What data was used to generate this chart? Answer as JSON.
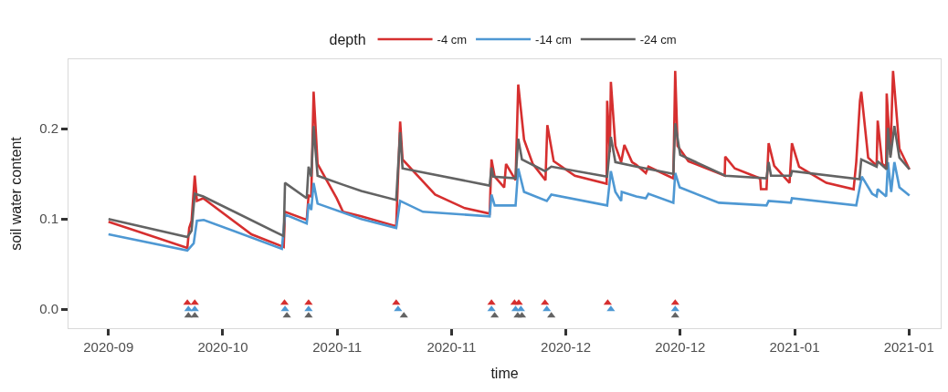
{
  "chart_data": {
    "type": "line",
    "xlabel": "time",
    "ylabel": "soil water content",
    "legend_title": "depth",
    "legend": "top",
    "grid": false,
    "line_style": "solid",
    "xlim": [
      "2020-09-20T17:00",
      "2021-02-05T00:00"
    ],
    "xticks": [
      {
        "value": "2020-09-27",
        "label": "2020-09"
      },
      {
        "value": "2020-10-15",
        "label": "2020-10"
      },
      {
        "value": "2020-11-02",
        "label": "2020-11"
      },
      {
        "value": "2020-11-20",
        "label": "2020-11"
      },
      {
        "value": "2020-12-08",
        "label": "2020-12"
      },
      {
        "value": "2020-12-26",
        "label": "2020-12"
      },
      {
        "value": "2021-01-13",
        "label": "2021-01"
      },
      {
        "value": "2021-01-31",
        "label": "2021-01"
      }
    ],
    "ylim": [
      -0.021,
      0.277
    ],
    "yticks": [
      {
        "value": 0,
        "label": "0.0"
      },
      {
        "value": 0.1,
        "label": "0.1"
      },
      {
        "value": 0.2,
        "label": "0.2"
      }
    ],
    "series": [
      {
        "name": "-4 cm",
        "color": "#d62f2f",
        "x": [
          "2020-09-27T00:00",
          "2020-10-09T10:00",
          "2020-10-09T17:00",
          "2020-10-10T02:00",
          "2020-10-10T14:00",
          "2020-10-10T22:00",
          "2020-10-11T22:00",
          "2020-10-19T12:00",
          "2020-10-24T14:00",
          "2020-10-24T19:00",
          "2020-10-28T05:00",
          "2020-10-28T12:00",
          "2020-10-28T22:00",
          "2020-10-29T07:00",
          "2020-10-29T22:00",
          "2020-11-01T22:00",
          "2020-11-02T22:00",
          "2020-11-05T19:00",
          "2020-11-11T07:00",
          "2020-11-11T22:00",
          "2020-11-12T07:00",
          "2020-11-17T10:00",
          "2020-11-22T02:00",
          "2020-11-26T00:00",
          "2020-11-26T07:00",
          "2020-11-26T19:00",
          "2020-11-28T07:00",
          "2020-11-28T14:00",
          "2020-11-30T02:00",
          "2020-11-30T12:00",
          "2020-12-01T10:00",
          "2020-12-02T19:00",
          "2020-12-04T19:00",
          "2020-12-05T02:00",
          "2020-12-06T02:00",
          "2020-12-09T10:00",
          "2020-12-14T10:00",
          "2020-12-14T12:00",
          "2020-12-14T22:00",
          "2020-12-15T02:00",
          "2020-12-15T19:00",
          "2020-12-16T17:00",
          "2020-12-17T05:00",
          "2020-12-18T10:00",
          "2020-12-19T02:00",
          "2020-12-20T14:00",
          "2020-12-21T00:00",
          "2020-12-24T22:00",
          "2020-12-25T05:00",
          "2020-12-25T14:00",
          "2020-12-27T07:00",
          "2021-01-02T00:00",
          "2021-01-02T02:00",
          "2021-01-03T14:00",
          "2021-01-07T14:00",
          "2021-01-07T17:00",
          "2021-01-08T14:00",
          "2021-01-08T22:00",
          "2021-01-09T19:00",
          "2021-01-12T05:00",
          "2021-01-12T14:00",
          "2021-01-13T17:00",
          "2021-01-18T00:00",
          "2021-01-22T07:00",
          "2021-01-22T17:00",
          "2021-01-23T07:00",
          "2021-01-23T12:00",
          "2021-01-24T14:00",
          "2021-01-25T22:00",
          "2021-01-26T02:00",
          "2021-01-26T19:00",
          "2021-01-27T10:00",
          "2021-01-27T12:00",
          "2021-01-28T02:00",
          "2021-01-28T12:00",
          "2021-01-29T12:00",
          "2021-01-31T02:00"
        ],
        "values": [
          0.097,
          0.068,
          0.09,
          0.098,
          0.148,
          0.12,
          0.123,
          0.083,
          0.069,
          0.108,
          0.099,
          0.126,
          0.125,
          0.241,
          0.161,
          0.123,
          0.108,
          0.103,
          0.092,
          0.208,
          0.166,
          0.127,
          0.112,
          0.106,
          0.166,
          0.147,
          0.135,
          0.161,
          0.143,
          0.249,
          0.188,
          0.161,
          0.143,
          0.204,
          0.164,
          0.148,
          0.139,
          0.231,
          0.174,
          0.252,
          0.181,
          0.163,
          0.182,
          0.163,
          0.16,
          0.151,
          0.158,
          0.145,
          0.264,
          0.181,
          0.164,
          0.148,
          0.169,
          0.156,
          0.145,
          0.133,
          0.133,
          0.184,
          0.159,
          0.14,
          0.184,
          0.158,
          0.14,
          0.133,
          0.163,
          0.231,
          0.241,
          0.168,
          0.159,
          0.209,
          0.161,
          0.158,
          0.239,
          0.171,
          0.264,
          0.178,
          0.155
        ]
      },
      {
        "name": "-14 cm",
        "color": "#4e98d3",
        "x": [
          "2020-09-27T00:00",
          "2020-10-09T10:00",
          "2020-10-10T10:00",
          "2020-10-10T22:00",
          "2020-10-12T00:00",
          "2020-10-24T07:00",
          "2020-10-24T19:00",
          "2020-10-28T05:00",
          "2020-10-28T12:00",
          "2020-10-28T22:00",
          "2020-10-29T07:00",
          "2020-10-29T22:00",
          "2020-11-05T19:00",
          "2020-11-11T07:00",
          "2020-11-11T22:00",
          "2020-11-15T12:00",
          "2020-11-26T00:00",
          "2020-11-26T07:00",
          "2020-11-26T19:00",
          "2020-11-30T02:00",
          "2020-11-30T12:00",
          "2020-12-01T10:00",
          "2020-12-05T00:00",
          "2020-12-05T17:00",
          "2020-12-14T12:00",
          "2020-12-15T02:00",
          "2020-12-15T19:00",
          "2020-12-16T17:00",
          "2020-12-16T19:00",
          "2020-12-19T02:00",
          "2020-12-20T14:00",
          "2020-12-21T00:00",
          "2020-12-24T22:00",
          "2020-12-25T05:00",
          "2020-12-25T22:00",
          "2021-01-01T02:00",
          "2021-01-08T14:00",
          "2021-01-08T22:00",
          "2021-01-12T10:00",
          "2021-01-12T14:00",
          "2021-01-22T17:00",
          "2021-01-23T14:00",
          "2021-01-25T05:00",
          "2021-01-25T22:00",
          "2021-01-26T02:00",
          "2021-01-27T10:00",
          "2021-01-27T17:00",
          "2021-01-28T05:00",
          "2021-01-28T17:00",
          "2021-01-29T12:00",
          "2021-01-31T02:00"
        ],
        "values": [
          0.083,
          0.065,
          0.073,
          0.098,
          0.099,
          0.067,
          0.105,
          0.095,
          0.117,
          0.11,
          0.14,
          0.117,
          0.1,
          0.09,
          0.12,
          0.108,
          0.103,
          0.127,
          0.115,
          0.115,
          0.156,
          0.13,
          0.12,
          0.127,
          0.115,
          0.153,
          0.13,
          0.12,
          0.13,
          0.125,
          0.123,
          0.128,
          0.118,
          0.151,
          0.135,
          0.118,
          0.115,
          0.12,
          0.118,
          0.123,
          0.115,
          0.147,
          0.128,
          0.125,
          0.133,
          0.125,
          0.163,
          0.13,
          0.163,
          0.135,
          0.126
        ]
      },
      {
        "name": "-24 cm",
        "color": "#636363",
        "x": [
          "2020-09-27T00:00",
          "2020-10-09T10:00",
          "2020-10-10T02:00",
          "2020-10-10T14:00",
          "2020-10-11T22:00",
          "2020-10-24T14:00",
          "2020-10-24T19:00",
          "2020-10-28T05:00",
          "2020-10-28T12:00",
          "2020-10-28T22:00",
          "2020-10-29T07:00",
          "2020-10-29T22:00",
          "2020-11-02T22:00",
          "2020-11-05T19:00",
          "2020-11-11T07:00",
          "2020-11-11T22:00",
          "2020-11-12T07:00",
          "2020-11-26T00:00",
          "2020-11-26T07:00",
          "2020-11-26T14:00",
          "2020-11-30T02:00",
          "2020-11-30T12:00",
          "2020-12-01T02:00",
          "2020-12-04T17:00",
          "2020-12-05T17:00",
          "2020-12-14T12:00",
          "2020-12-15T02:00",
          "2020-12-15T19:00",
          "2020-12-19T02:00",
          "2020-12-24T22:00",
          "2020-12-25T05:00",
          "2020-12-26T00:00",
          "2021-01-02T02:00",
          "2021-01-08T14:00",
          "2021-01-08T22:00",
          "2021-01-09T07:00",
          "2021-01-12T10:00",
          "2021-01-12T14:00",
          "2021-01-23T05:00",
          "2021-01-23T12:00",
          "2021-01-25T22:00",
          "2021-01-26T02:00",
          "2021-01-27T12:00",
          "2021-01-27T17:00",
          "2021-01-28T02:00",
          "2021-01-28T17:00",
          "2021-01-29T12:00",
          "2021-01-31T02:00"
        ],
        "values": [
          0.1,
          0.08,
          0.087,
          0.128,
          0.125,
          0.081,
          0.14,
          0.123,
          0.158,
          0.147,
          0.203,
          0.148,
          0.138,
          0.131,
          0.121,
          0.196,
          0.156,
          0.137,
          0.157,
          0.147,
          0.145,
          0.189,
          0.166,
          0.153,
          0.158,
          0.147,
          0.191,
          0.163,
          0.158,
          0.15,
          0.206,
          0.171,
          0.148,
          0.145,
          0.163,
          0.148,
          0.148,
          0.153,
          0.144,
          0.166,
          0.158,
          0.164,
          0.155,
          0.201,
          0.168,
          0.203,
          0.168,
          0.155
        ]
      },
      {
        "type": "scatter",
        "marker": "triangle",
        "color": "#d62f2f",
        "x": [
          "2020-10-09T10:00",
          "2020-10-10T14:00",
          "2020-10-24T17:00",
          "2020-10-28T12:00",
          "2020-11-11T07:00",
          "2020-11-26T07:00",
          "2020-11-29T22:00",
          "2020-11-30T14:00",
          "2020-12-04T17:00",
          "2020-12-14T14:00",
          "2020-12-25T05:00"
        ],
        "values": [
          0.007,
          0.007,
          0.007,
          0.007,
          0.007,
          0.007,
          0.007,
          0.007,
          0.007,
          0.007,
          0.007
        ]
      },
      {
        "type": "scatter",
        "marker": "triangle",
        "color": "#4e98d3",
        "x": [
          "2020-10-09T14:00",
          "2020-10-10T14:00",
          "2020-10-24T19:00",
          "2020-10-28T12:00",
          "2020-11-11T14:00",
          "2020-11-26T07:00",
          "2020-11-30T02:00",
          "2020-11-30T22:00",
          "2020-12-05T00:00",
          "2020-12-15T02:00",
          "2020-12-25T05:00"
        ],
        "values": [
          0,
          0,
          0,
          0,
          0,
          0,
          0,
          0,
          0,
          0,
          0
        ]
      },
      {
        "type": "scatter",
        "marker": "triangle",
        "color": "#636363",
        "x": [
          "2020-10-09T14:00",
          "2020-10-10T14:00",
          "2020-10-25T02:00",
          "2020-10-28T12:00",
          "2020-11-12T12:00",
          "2020-11-26T19:00",
          "2020-11-30T10:00",
          "2020-12-01T02:00",
          "2020-12-05T17:00",
          "2020-12-25T05:00"
        ],
        "values": [
          -0.007,
          -0.007,
          -0.007,
          -0.007,
          -0.007,
          -0.007,
          -0.007,
          -0.007,
          -0.007,
          -0.007
        ]
      }
    ]
  }
}
